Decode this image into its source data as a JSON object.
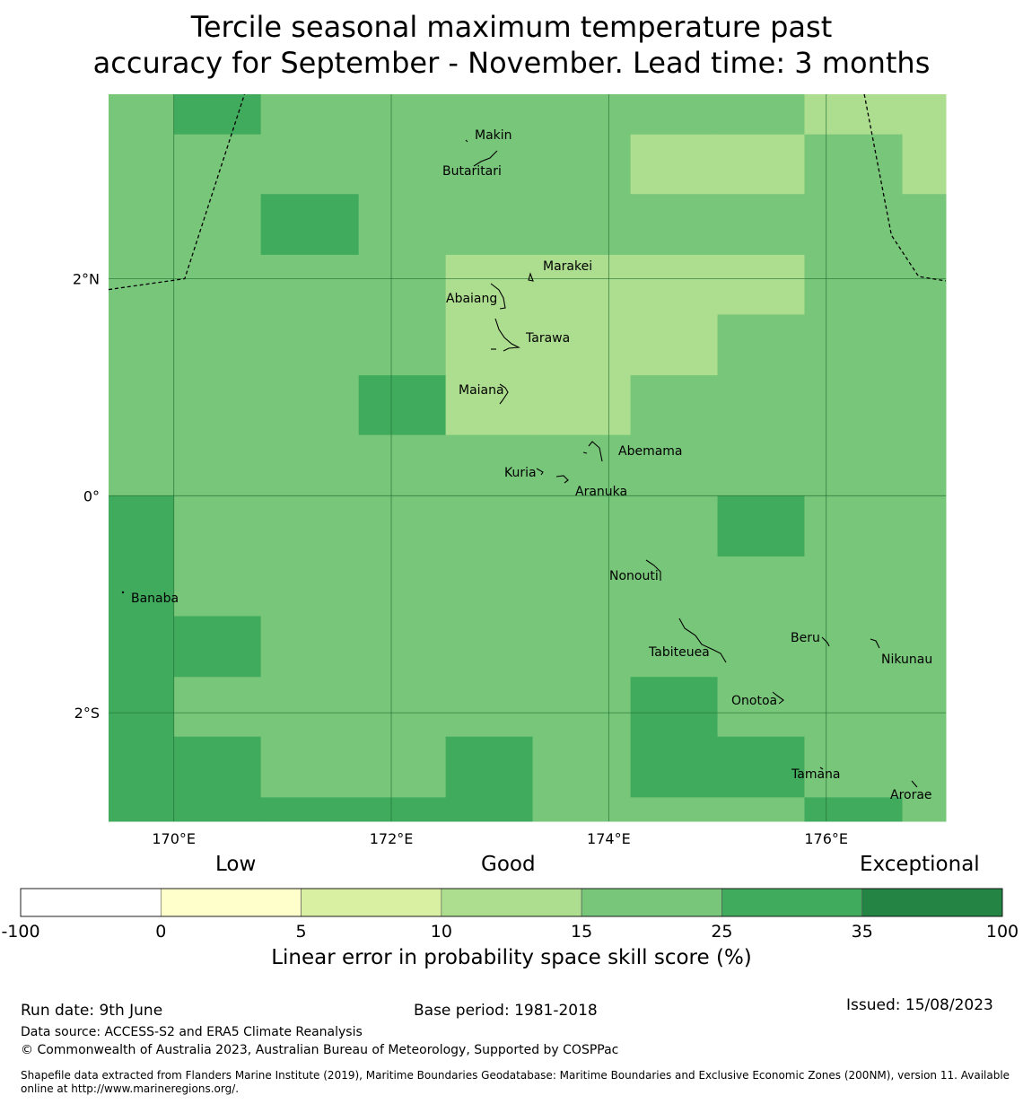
{
  "title": "Tercile seasonal maximum temperature past\naccuracy for September - November. Lead time: 3 months",
  "chart_data": {
    "type": "heatmap",
    "lon_range": [
      169.4,
      177.1
    ],
    "lat_range": [
      -3.0,
      3.7
    ],
    "x_ticks": [
      {
        "value": 170,
        "label": "170°E"
      },
      {
        "value": 172,
        "label": "172°E"
      },
      {
        "value": 174,
        "label": "174°E"
      },
      {
        "value": 176,
        "label": "176°E"
      }
    ],
    "y_ticks": [
      {
        "value": 2,
        "label": "2°N"
      },
      {
        "value": 0,
        "label": "0°"
      },
      {
        "value": -2,
        "label": "2°S"
      }
    ],
    "grid_cols": [
      "169.4-170.0",
      "170.0-170.8",
      "170.8-171.7",
      "171.7-172.5",
      "172.5-173.3",
      "173.3-174.2",
      "174.2-175.0",
      "175.0-175.8",
      "175.8-176.7",
      "176.7-177.1"
    ],
    "grid_rows": [
      "3.7-3.33",
      "3.33-2.78",
      "2.78-2.22",
      "2.22-1.67",
      "1.67-1.11",
      "1.11-0.56",
      "0.56-0.0",
      "0.0--0.56",
      "-0.56--1.11",
      "-1.11--1.67",
      "-1.67--2.22",
      "-2.22--2.78",
      "-2.78--3.0"
    ],
    "cells": [
      [
        4,
        5,
        4,
        4,
        4,
        4,
        4,
        4,
        3,
        3
      ],
      [
        4,
        4,
        4,
        4,
        4,
        4,
        3,
        3,
        4,
        3
      ],
      [
        4,
        4,
        5,
        4,
        4,
        4,
        4,
        4,
        4,
        4
      ],
      [
        4,
        4,
        4,
        4,
        3,
        3,
        3,
        3,
        4,
        4
      ],
      [
        4,
        4,
        4,
        4,
        3,
        3,
        3,
        4,
        4,
        4
      ],
      [
        4,
        4,
        4,
        5,
        3,
        3,
        4,
        4,
        4,
        4
      ],
      [
        4,
        4,
        4,
        4,
        4,
        4,
        4,
        4,
        4,
        4
      ],
      [
        5,
        4,
        4,
        4,
        4,
        4,
        4,
        5,
        4,
        4
      ],
      [
        5,
        4,
        4,
        4,
        4,
        4,
        4,
        4,
        4,
        4
      ],
      [
        5,
        5,
        4,
        4,
        4,
        4,
        4,
        4,
        4,
        4
      ],
      [
        5,
        4,
        4,
        4,
        4,
        4,
        5,
        4,
        4,
        4
      ],
      [
        5,
        5,
        4,
        4,
        5,
        4,
        5,
        5,
        4,
        4
      ],
      [
        5,
        5,
        5,
        5,
        5,
        4,
        4,
        4,
        5,
        4
      ]
    ],
    "islands": [
      {
        "name": "Makin",
        "lon": 172.95,
        "lat": 3.35
      },
      {
        "name": "Butaritari",
        "lon": 172.9,
        "lat": 3.1
      },
      {
        "name": "Marakei",
        "lon": 173.3,
        "lat": 2.0
      },
      {
        "name": "Abaiang",
        "lon": 173.0,
        "lat": 1.85
      },
      {
        "name": "Tarawa",
        "lon": 173.0,
        "lat": 1.45
      },
      {
        "name": "Maiana",
        "lon": 173.0,
        "lat": 0.95
      },
      {
        "name": "Abemama",
        "lon": 173.85,
        "lat": 0.4
      },
      {
        "name": "Kuria",
        "lon": 173.4,
        "lat": 0.23
      },
      {
        "name": "Aranuka",
        "lon": 173.6,
        "lat": 0.17
      },
      {
        "name": "Nonouti",
        "lon": 174.45,
        "lat": -0.7
      },
      {
        "name": "Banaba",
        "lon": 169.53,
        "lat": -0.87
      },
      {
        "name": "Tabiteuea",
        "lon": 174.8,
        "lat": -1.4
      },
      {
        "name": "Beru",
        "lon": 175.98,
        "lat": -1.35
      },
      {
        "name": "Nikunau",
        "lon": 176.45,
        "lat": -1.35
      },
      {
        "name": "Onotoa",
        "lon": 175.55,
        "lat": -1.8
      },
      {
        "name": "Tamana",
        "lon": 175.97,
        "lat": -2.5
      },
      {
        "name": "Arorae",
        "lon": 176.82,
        "lat": -2.65
      }
    ],
    "colorbar": {
      "boundaries": [
        "-100",
        "0",
        "5",
        "10",
        "15",
        "25",
        "35",
        "100"
      ],
      "colors": [
        "#ffffff",
        "#ffffcc",
        "#d9f0a3",
        "#addd8e",
        "#78c679",
        "#41ab5d",
        "#238443"
      ],
      "categories": [
        "Low",
        "Good",
        "Exceptional"
      ],
      "label": "Linear error in probability space skill score (%)"
    }
  },
  "colors": {
    "grid_line": "#1e6e32",
    "coast": "#000000",
    "eez_line": "#000000"
  },
  "footer": {
    "run_date": "Run date: 9th June",
    "base_period": "Base period: 1981-2018",
    "issued": "Issued: 15/08/2023",
    "data_source": "Data source: ACCESS-S2 and ERA5 Climate Reanalysis",
    "copyright": "© Commonwealth of Australia 2023, Australian Bureau of Meteorology, Supported by COSPPac",
    "shapefile": "Shapefile data extracted from Flanders Marine Institute (2019), Maritime Boundaries Geodatabase: Maritime Boundaries and Exclusive Economic Zones (200NM), version 11. Available online at http://www.marineregions.org/."
  }
}
